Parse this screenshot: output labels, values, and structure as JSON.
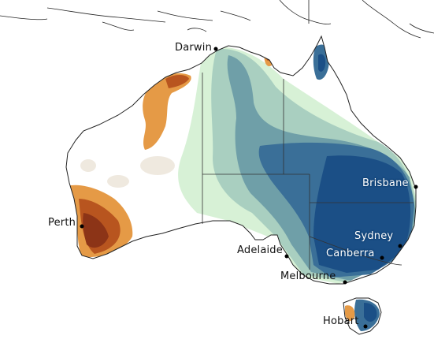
{
  "map": {
    "cities": [
      {
        "id": "darwin",
        "name": "Darwin"
      },
      {
        "id": "brisbane",
        "name": "Brisbane"
      },
      {
        "id": "perth",
        "name": "Perth"
      },
      {
        "id": "sydney",
        "name": "Sydney"
      },
      {
        "id": "adelaide",
        "name": "Adelaide"
      },
      {
        "id": "canberra",
        "name": "Canberra"
      },
      {
        "id": "melbourne",
        "name": "Melbourne"
      },
      {
        "id": "hobart",
        "name": "Hobart"
      }
    ],
    "palette": {
      "dark_blue": "#1b4f86",
      "blue": "#3a6f98",
      "teal": "#6f9fa8",
      "light_teal": "#a9cfc0",
      "mint": "#d7f1d6",
      "pale_beige": "#efe9df",
      "orange": "#e59a46",
      "dark_orange": "#b8551f",
      "brown": "#8c3417",
      "land_neutral": "#ffffff",
      "coastline": "#222222"
    }
  }
}
